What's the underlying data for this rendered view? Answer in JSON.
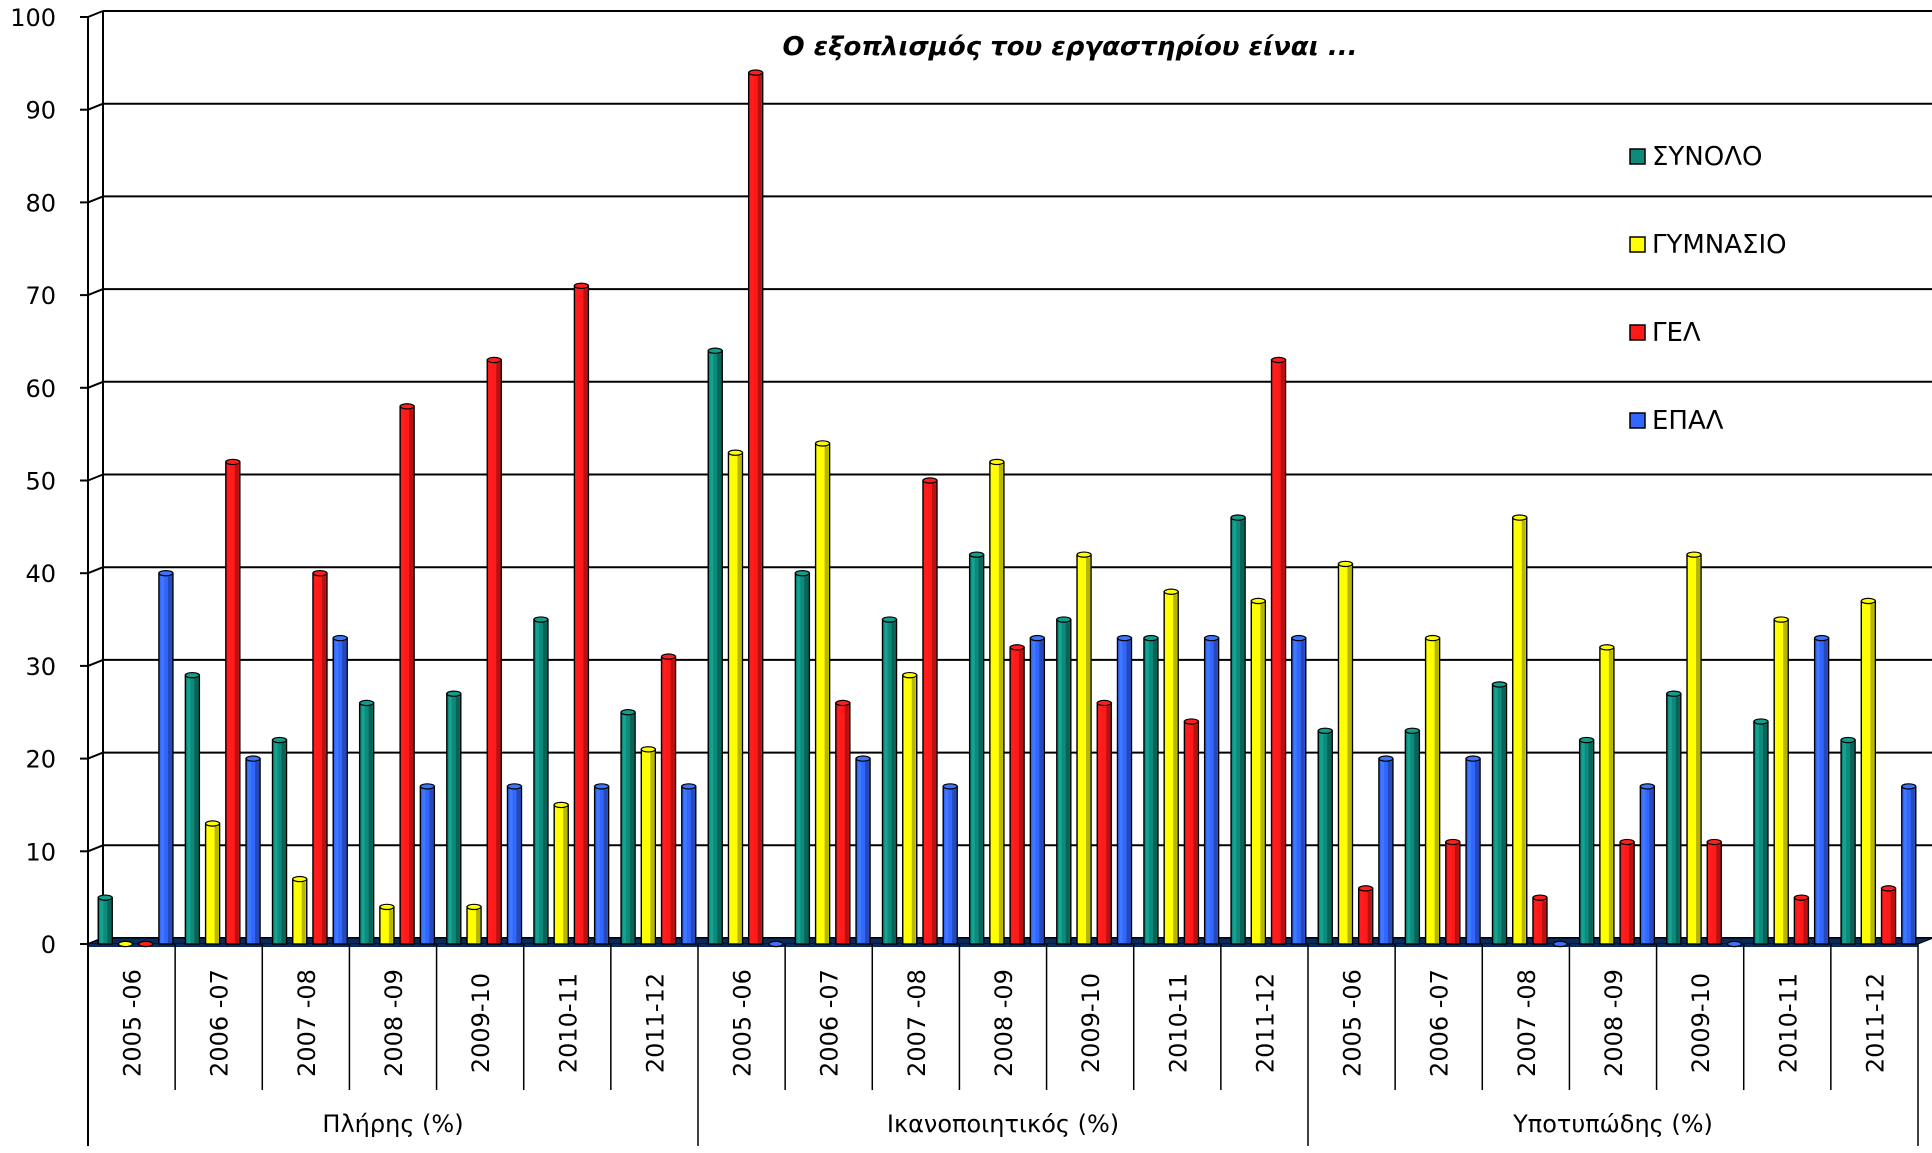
{
  "chart_data": {
    "type": "bar",
    "title": "Ο εξοπλισμός του εργαστηρίου είναι ...",
    "ylim": [
      0,
      100
    ],
    "yticks": [
      0,
      10,
      20,
      30,
      40,
      50,
      60,
      70,
      80,
      90,
      100
    ],
    "grid": true,
    "legend_position": "right",
    "groups": [
      {
        "label": "Πλήρης (%)",
        "categories": [
          "2005 -06",
          "2006 -07",
          "2007 -08",
          "2008 -09",
          "2009-10",
          "2010-11",
          "2011-12"
        ]
      },
      {
        "label": "Ικανοποιητικός (%)",
        "categories": [
          "2005 -06",
          "2006 -07",
          "2007 -08",
          "2008 -09",
          "2009-10",
          "2010-11",
          "2011-12"
        ]
      },
      {
        "label": "Υποτυπώδης (%)",
        "categories": [
          "2005 -06",
          "2006 -07",
          "2007 -08",
          "2008 -09",
          "2009-10",
          "2010-11",
          "2011-12"
        ]
      }
    ],
    "series": [
      {
        "name": "ΣΥΝΟΛΟ",
        "color": "#0f8a7a",
        "values": [
          5,
          29,
          22,
          26,
          27,
          35,
          25,
          64,
          40,
          35,
          42,
          35,
          33,
          46,
          23,
          23,
          28,
          22,
          27,
          24,
          22
        ]
      },
      {
        "name": "ΓΥΜΝΑΣΙΟ",
        "color": "#ffff00",
        "values": [
          0,
          13,
          7,
          4,
          4,
          15,
          21,
          53,
          54,
          29,
          52,
          42,
          38,
          37,
          41,
          33,
          46,
          32,
          42,
          35,
          37
        ]
      },
      {
        "name": "ΓΕΛ",
        "color": "#ff1a1a",
        "values": [
          0,
          52,
          40,
          58,
          63,
          71,
          31,
          94,
          26,
          50,
          32,
          26,
          24,
          63,
          6,
          11,
          5,
          11,
          11,
          5,
          6
        ]
      },
      {
        "name": "ΕΠΑΛ",
        "color": "#3366ff",
        "values": [
          40,
          20,
          33,
          17,
          17,
          17,
          17,
          0,
          20,
          17,
          33,
          33,
          33,
          33,
          20,
          20,
          0,
          17,
          0,
          33,
          17
        ]
      }
    ]
  }
}
